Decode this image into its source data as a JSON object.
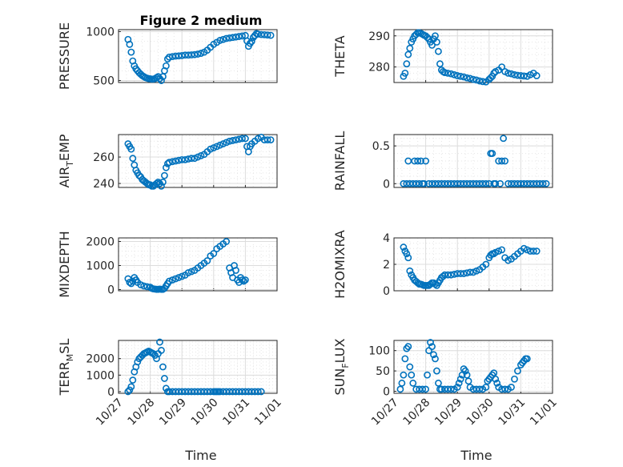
{
  "figure": {
    "title": "Figure 2 medium",
    "x_label": "Time",
    "marker_color": "#0072BD"
  },
  "chart_data": [
    {
      "type": "scatter",
      "ylabel": "PRESSURE",
      "xlim": [
        0,
        5
      ],
      "x_tick_labels": [
        "10/27",
        "10/28",
        "10/29",
        "10/30",
        "10/31",
        "11/01"
      ],
      "ylim": [
        480,
        1020
      ],
      "y_ticks": [
        500,
        1000
      ],
      "x": [
        0.3,
        0.35,
        0.4,
        0.45,
        0.5,
        0.55,
        0.6,
        0.65,
        0.7,
        0.75,
        0.8,
        0.85,
        0.9,
        0.95,
        1.0,
        1.05,
        1.1,
        1.15,
        1.2,
        1.25,
        1.3,
        1.35,
        1.4,
        1.45,
        1.5,
        1.55,
        1.6,
        1.7,
        1.8,
        1.9,
        2.0,
        2.1,
        2.2,
        2.3,
        2.4,
        2.5,
        2.6,
        2.7,
        2.8,
        2.9,
        3.0,
        3.1,
        3.2,
        3.3,
        3.4,
        3.5,
        3.6,
        3.7,
        3.8,
        3.9,
        4.0,
        4.05,
        4.1,
        4.15,
        4.2,
        4.25,
        4.3,
        4.35,
        4.4,
        4.5,
        4.6,
        4.7,
        4.8
      ],
      "y": [
        920,
        870,
        790,
        700,
        650,
        620,
        600,
        580,
        565,
        550,
        540,
        530,
        525,
        520,
        518,
        515,
        515,
        520,
        530,
        540,
        520,
        500,
        540,
        600,
        650,
        720,
        740,
        745,
        750,
        752,
        755,
        760,
        760,
        762,
        765,
        770,
        778,
        790,
        810,
        840,
        870,
        890,
        910,
        920,
        930,
        935,
        940,
        945,
        950,
        955,
        960,
        905,
        850,
        880,
        900,
        940,
        960,
        980,
        975,
        970,
        968,
        965,
        962
      ]
    },
    {
      "type": "scatter",
      "ylabel": "THETA",
      "xlim": [
        0,
        5
      ],
      "x_tick_labels": [
        "10/27",
        "10/28",
        "10/29",
        "10/30",
        "10/31",
        "11/01"
      ],
      "ylim": [
        275,
        292
      ],
      "y_ticks": [
        280,
        290
      ],
      "x": [
        0.3,
        0.35,
        0.4,
        0.45,
        0.5,
        0.55,
        0.6,
        0.65,
        0.7,
        0.75,
        0.8,
        0.85,
        0.9,
        0.95,
        1.0,
        1.05,
        1.1,
        1.15,
        1.2,
        1.25,
        1.3,
        1.35,
        1.4,
        1.45,
        1.5,
        1.55,
        1.6,
        1.7,
        1.8,
        1.9,
        2.0,
        2.1,
        2.2,
        2.3,
        2.4,
        2.5,
        2.6,
        2.7,
        2.8,
        2.9,
        3.0,
        3.05,
        3.1,
        3.15,
        3.2,
        3.3,
        3.4,
        3.5,
        3.6,
        3.7,
        3.8,
        3.9,
        4.0,
        4.1,
        4.2,
        4.3,
        4.4,
        4.5
      ],
      "y": [
        277,
        278,
        281,
        284,
        286,
        288,
        289,
        290,
        290.5,
        291,
        291,
        290.8,
        290.5,
        290.2,
        290,
        289.5,
        289,
        288,
        287,
        289,
        290,
        288,
        285,
        281,
        279,
        278.5,
        278.2,
        278,
        277.8,
        277.5,
        277.2,
        277,
        276.8,
        276.5,
        276.3,
        276,
        275.8,
        275.5,
        275.3,
        275.2,
        276,
        276.5,
        277,
        278,
        278.5,
        279,
        280,
        278.5,
        278,
        277.8,
        277.5,
        277.3,
        277.2,
        277.1,
        277,
        277.5,
        278,
        277.2
      ]
    },
    {
      "type": "scatter",
      "ylabel": "AIR_TEMP",
      "xlim": [
        0,
        5
      ],
      "x_tick_labels": [
        "10/27",
        "10/28",
        "10/29",
        "10/30",
        "10/31",
        "11/01"
      ],
      "ylim": [
        237,
        277
      ],
      "y_ticks": [
        240,
        260
      ],
      "x": [
        0.3,
        0.35,
        0.4,
        0.45,
        0.5,
        0.55,
        0.6,
        0.65,
        0.7,
        0.75,
        0.8,
        0.85,
        0.9,
        0.95,
        1.0,
        1.05,
        1.1,
        1.15,
        1.2,
        1.25,
        1.3,
        1.35,
        1.4,
        1.45,
        1.5,
        1.55,
        1.6,
        1.7,
        1.8,
        1.9,
        2.0,
        2.1,
        2.2,
        2.3,
        2.4,
        2.5,
        2.6,
        2.7,
        2.8,
        2.9,
        3.0,
        3.1,
        3.2,
        3.3,
        3.4,
        3.5,
        3.6,
        3.7,
        3.8,
        3.9,
        4.0,
        4.05,
        4.1,
        4.15,
        4.2,
        4.3,
        4.4,
        4.5,
        4.6,
        4.7,
        4.8
      ],
      "y": [
        270,
        268,
        266,
        259,
        254,
        250,
        248,
        246,
        245,
        243,
        242,
        241,
        240,
        239,
        239,
        238,
        238,
        239,
        240,
        241,
        240,
        238,
        241,
        246,
        252,
        255,
        256,
        256.5,
        257,
        257.5,
        258,
        258,
        258.5,
        259,
        259,
        260,
        261,
        262,
        264,
        266,
        267,
        268,
        269,
        270,
        271,
        272,
        272.5,
        273,
        273.5,
        274,
        274,
        268,
        264,
        268,
        270,
        272,
        274,
        275,
        273,
        273,
        273
      ]
    },
    {
      "type": "scatter",
      "ylabel": "RAINFALL",
      "xlim": [
        0,
        5
      ],
      "x_tick_labels": [
        "10/27",
        "10/28",
        "10/29",
        "10/30",
        "10/31",
        "11/01"
      ],
      "ylim": [
        -0.05,
        0.65
      ],
      "y_ticks": [
        0,
        0.5
      ],
      "x": [
        0.3,
        0.4,
        0.45,
        0.5,
        0.6,
        0.65,
        0.7,
        0.75,
        0.8,
        0.85,
        0.9,
        0.95,
        1.0,
        1.1,
        1.2,
        1.3,
        1.4,
        1.5,
        1.6,
        1.7,
        1.8,
        1.9,
        2.0,
        2.1,
        2.2,
        2.3,
        2.4,
        2.5,
        2.6,
        2.7,
        2.8,
        2.9,
        3.0,
        3.05,
        3.1,
        3.15,
        3.2,
        3.3,
        3.35,
        3.4,
        3.45,
        3.5,
        3.6,
        3.7,
        3.8,
        3.9,
        4.0,
        4.1,
        4.2,
        4.3,
        4.4,
        4.5,
        4.6,
        4.7,
        4.8
      ],
      "y": [
        0,
        0,
        0.3,
        0,
        0,
        0.3,
        0,
        0.3,
        0,
        0.3,
        0,
        0,
        0.3,
        0,
        0,
        0,
        0,
        0,
        0,
        0,
        0,
        0,
        0,
        0,
        0,
        0,
        0,
        0,
        0,
        0,
        0,
        0,
        0,
        0.4,
        0.4,
        0,
        0,
        0.3,
        0,
        0.3,
        0.6,
        0.3,
        0,
        0,
        0,
        0,
        0,
        0,
        0,
        0,
        0,
        0,
        0,
        0,
        0
      ]
    },
    {
      "type": "scatter",
      "ylabel": "MIXDEPTH",
      "xlim": [
        0,
        5
      ],
      "x_tick_labels": [
        "10/27",
        "10/28",
        "10/29",
        "10/30",
        "10/31",
        "11/01"
      ],
      "ylim": [
        -50,
        2150
      ],
      "y_ticks": [
        0,
        1000,
        2000
      ],
      "x": [
        0.3,
        0.35,
        0.4,
        0.45,
        0.5,
        0.55,
        0.6,
        0.7,
        0.8,
        0.9,
        1.0,
        1.05,
        1.1,
        1.15,
        1.2,
        1.25,
        1.3,
        1.35,
        1.4,
        1.45,
        1.5,
        1.55,
        1.6,
        1.7,
        1.8,
        1.9,
        2.0,
        2.1,
        2.2,
        2.3,
        2.4,
        2.5,
        2.6,
        2.7,
        2.8,
        2.9,
        3.0,
        3.1,
        3.2,
        3.3,
        3.4,
        3.5,
        3.55,
        3.6,
        3.65,
        3.7,
        3.75,
        3.8,
        3.85,
        3.9,
        3.95,
        4.0
      ],
      "y": [
        450,
        300,
        250,
        350,
        500,
        400,
        300,
        200,
        150,
        120,
        100,
        50,
        30,
        20,
        10,
        10,
        20,
        10,
        10,
        50,
        150,
        250,
        350,
        400,
        450,
        500,
        550,
        600,
        700,
        750,
        800,
        900,
        1000,
        1100,
        1200,
        1400,
        1500,
        1700,
        1800,
        1900,
        2000,
        900,
        700,
        500,
        1000,
        800,
        400,
        300,
        500,
        400,
        350,
        400
      ]
    },
    {
      "type": "scatter",
      "ylabel": "H2OMIXRA",
      "xlim": [
        0,
        5
      ],
      "x_tick_labels": [
        "10/27",
        "10/28",
        "10/29",
        "10/30",
        "10/31",
        "11/01"
      ],
      "ylim": [
        0,
        4
      ],
      "y_ticks": [
        0,
        2,
        4
      ],
      "x": [
        0.3,
        0.35,
        0.4,
        0.45,
        0.5,
        0.55,
        0.6,
        0.65,
        0.7,
        0.75,
        0.8,
        0.85,
        0.9,
        0.95,
        1.0,
        1.05,
        1.1,
        1.15,
        1.2,
        1.25,
        1.3,
        1.35,
        1.4,
        1.45,
        1.5,
        1.55,
        1.6,
        1.7,
        1.8,
        1.9,
        2.0,
        2.1,
        2.2,
        2.3,
        2.4,
        2.5,
        2.6,
        2.7,
        2.8,
        2.9,
        3.0,
        3.05,
        3.1,
        3.15,
        3.2,
        3.3,
        3.4,
        3.5,
        3.6,
        3.7,
        3.8,
        3.9,
        4.0,
        4.1,
        4.2,
        4.3,
        4.4,
        4.5
      ],
      "y": [
        3.3,
        3.0,
        2.8,
        2.5,
        1.5,
        1.2,
        1.0,
        0.8,
        0.7,
        0.6,
        0.5,
        0.5,
        0.45,
        0.4,
        0.4,
        0.4,
        0.4,
        0.5,
        0.6,
        0.6,
        0.5,
        0.4,
        0.6,
        0.8,
        1.0,
        1.1,
        1.2,
        1.2,
        1.2,
        1.25,
        1.3,
        1.3,
        1.3,
        1.35,
        1.4,
        1.4,
        1.5,
        1.6,
        1.8,
        2.0,
        2.5,
        2.7,
        2.8,
        2.8,
        2.9,
        3.0,
        3.1,
        2.5,
        2.3,
        2.4,
        2.6,
        2.8,
        3.0,
        3.2,
        3.1,
        3.0,
        3.0,
        3.0
      ]
    },
    {
      "type": "scatter",
      "ylabel": "TERR_MSL",
      "xlim": [
        0,
        5
      ],
      "x_tick_labels": [
        "10/27",
        "10/28",
        "10/29",
        "10/30",
        "10/31",
        "11/01"
      ],
      "ylim": [
        -100,
        3100
      ],
      "y_ticks": [
        0,
        1000,
        2000
      ],
      "x": [
        0.3,
        0.35,
        0.4,
        0.45,
        0.5,
        0.55,
        0.6,
        0.65,
        0.7,
        0.75,
        0.8,
        0.85,
        0.9,
        0.95,
        1.0,
        1.05,
        1.1,
        1.15,
        1.2,
        1.25,
        1.3,
        1.35,
        1.4,
        1.45,
        1.5,
        1.55,
        1.6,
        1.7,
        1.8,
        1.9,
        2.0,
        2.1,
        2.2,
        2.3,
        2.4,
        2.5,
        2.6,
        2.7,
        2.8,
        2.9,
        3.0,
        3.05,
        3.1,
        3.15,
        3.2,
        3.3,
        3.4,
        3.5,
        3.6,
        3.7,
        3.8,
        3.9,
        4.0,
        4.1,
        4.2,
        4.3,
        4.4,
        4.5
      ],
      "y": [
        0,
        100,
        300,
        700,
        1200,
        1500,
        1800,
        2000,
        2100,
        2200,
        2300,
        2350,
        2400,
        2450,
        2400,
        2350,
        2300,
        2200,
        2000,
        2300,
        3000,
        2500,
        1500,
        800,
        200,
        0,
        0,
        0,
        0,
        0,
        0,
        0,
        0,
        0,
        0,
        0,
        0,
        0,
        0,
        0,
        0,
        0,
        0,
        0,
        0,
        0,
        0,
        0,
        0,
        0,
        0,
        0,
        0,
        0,
        0,
        0,
        0,
        0
      ]
    },
    {
      "type": "scatter",
      "ylabel": "SUN_FLUX",
      "xlim": [
        0,
        5
      ],
      "x_tick_labels": [
        "10/27",
        "10/28",
        "10/29",
        "10/30",
        "10/31",
        "11/01"
      ],
      "ylim": [
        -5,
        125
      ],
      "y_ticks": [
        0,
        50,
        100
      ],
      "x": [
        0.2,
        0.25,
        0.3,
        0.35,
        0.4,
        0.45,
        0.5,
        0.55,
        0.6,
        0.7,
        0.8,
        0.9,
        1.0,
        1.05,
        1.1,
        1.15,
        1.2,
        1.25,
        1.3,
        1.35,
        1.4,
        1.45,
        1.5,
        1.6,
        1.7,
        1.8,
        1.9,
        2.0,
        2.05,
        2.1,
        2.15,
        2.2,
        2.25,
        2.3,
        2.35,
        2.4,
        2.5,
        2.6,
        2.7,
        2.8,
        2.9,
        2.95,
        3.0,
        3.05,
        3.1,
        3.15,
        3.2,
        3.25,
        3.3,
        3.4,
        3.5,
        3.6,
        3.7,
        3.8,
        3.9,
        4.0,
        4.05,
        4.1,
        4.15,
        4.2
      ],
      "y": [
        5,
        20,
        40,
        80,
        105,
        110,
        60,
        40,
        20,
        5,
        5,
        5,
        5,
        40,
        100,
        120,
        110,
        90,
        80,
        50,
        20,
        5,
        5,
        5,
        5,
        5,
        5,
        10,
        20,
        30,
        40,
        55,
        50,
        40,
        25,
        10,
        5,
        5,
        5,
        5,
        10,
        25,
        30,
        35,
        40,
        45,
        30,
        20,
        10,
        5,
        5,
        5,
        10,
        30,
        50,
        65,
        70,
        75,
        80,
        80
      ]
    }
  ]
}
